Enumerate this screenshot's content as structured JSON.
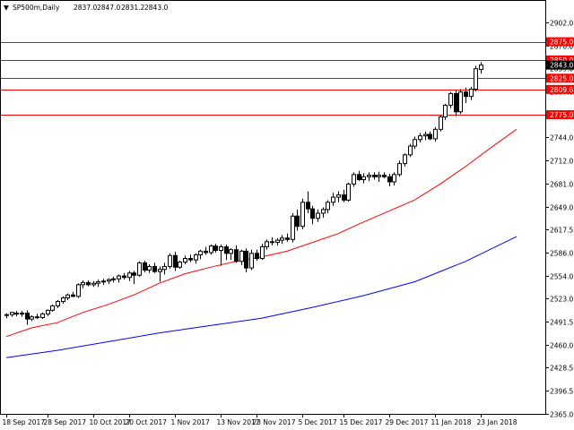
{
  "chart_data": {
    "type": "candlestick",
    "title": "SP500m,Daily",
    "last_bar": {
      "open": "2837.0",
      "high": "2847.0",
      "low": "2831.2",
      "close": "2843.0"
    },
    "current_price_label": "2843.0",
    "ylim": [
      2365,
      2915
    ],
    "y_ticks": [
      "2902.0",
      "2870.0",
      "2839.0",
      "2807.0",
      "2775.0",
      "2744.0",
      "2712.0",
      "2681.0",
      "2649.0",
      "2617.5",
      "2586.0",
      "2554.0",
      "2523.0",
      "2491.5",
      "2460.0",
      "2428.5",
      "2396.5",
      "2365.0"
    ],
    "x_ticks": [
      "18 Sep 2017",
      "28 Sep 2017",
      "10 Oct 2017",
      "20 Oct 2017",
      "1 Nov 2017",
      "13 Nov 2017",
      "23 Nov 2017",
      "5 Dec 2017",
      "15 Dec 2017",
      "29 Dec 2017",
      "11 Jan 2018",
      "23 Jan 2018"
    ],
    "levels": [
      {
        "value": 2875.0,
        "label": "2875.0"
      },
      {
        "value": 2850.0,
        "label": "2850.0"
      },
      {
        "value": 2825.0,
        "label": "2825.0"
      },
      {
        "value": 2809.6,
        "label": "2809.6"
      },
      {
        "value": 2775.0,
        "label": "2775.0"
      }
    ],
    "candles": [
      [
        2500,
        2503,
        2496,
        2501
      ],
      [
        2501,
        2505,
        2498,
        2504
      ],
      [
        2503,
        2506,
        2499,
        2502
      ],
      [
        2502,
        2506,
        2498,
        2503
      ],
      [
        2503,
        2507,
        2487,
        2495
      ],
      [
        2495,
        2500,
        2492,
        2498
      ],
      [
        2498,
        2502,
        2495,
        2497
      ],
      [
        2497,
        2504,
        2495,
        2502
      ],
      [
        2502,
        2508,
        2499,
        2507
      ],
      [
        2507,
        2515,
        2505,
        2513
      ],
      [
        2513,
        2521,
        2510,
        2519
      ],
      [
        2519,
        2526,
        2516,
        2524
      ],
      [
        2524,
        2530,
        2521,
        2528
      ],
      [
        2528,
        2532,
        2525,
        2526
      ],
      [
        2526,
        2544,
        2524,
        2542
      ],
      [
        2542,
        2548,
        2537,
        2545
      ],
      [
        2545,
        2548,
        2540,
        2542
      ],
      [
        2542,
        2547,
        2539,
        2544
      ],
      [
        2544,
        2549,
        2539,
        2546
      ],
      [
        2546,
        2550,
        2542,
        2547
      ],
      [
        2547,
        2551,
        2543,
        2549
      ],
      [
        2549,
        2553,
        2545,
        2550
      ],
      [
        2550,
        2556,
        2545,
        2554
      ],
      [
        2554,
        2558,
        2549,
        2552
      ],
      [
        2552,
        2561,
        2547,
        2558
      ],
      [
        2558,
        2561,
        2543,
        2555
      ],
      [
        2555,
        2574,
        2553,
        2572
      ],
      [
        2572,
        2575,
        2559,
        2562
      ],
      [
        2562,
        2570,
        2558,
        2567
      ],
      [
        2567,
        2572,
        2558,
        2560
      ],
      [
        2560,
        2567,
        2546,
        2563
      ],
      [
        2563,
        2572,
        2556,
        2567
      ],
      [
        2567,
        2585,
        2564,
        2582
      ],
      [
        2582,
        2587,
        2561,
        2566
      ],
      [
        2566,
        2575,
        2564,
        2573
      ],
      [
        2573,
        2582,
        2570,
        2578
      ],
      [
        2578,
        2583,
        2573,
        2576
      ],
      [
        2576,
        2585,
        2571,
        2583
      ],
      [
        2583,
        2590,
        2577,
        2588
      ],
      [
        2588,
        2594,
        2583,
        2586
      ],
      [
        2586,
        2597,
        2583,
        2595
      ],
      [
        2595,
        2598,
        2586,
        2589
      ],
      [
        2589,
        2597,
        2568,
        2594
      ],
      [
        2594,
        2597,
        2576,
        2585
      ],
      [
        2585,
        2592,
        2576,
        2590
      ],
      [
        2590,
        2596,
        2572,
        2574
      ],
      [
        2574,
        2590,
        2569,
        2588
      ],
      [
        2588,
        2592,
        2559,
        2565
      ],
      [
        2565,
        2590,
        2562,
        2585
      ],
      [
        2585,
        2590,
        2575,
        2578
      ],
      [
        2578,
        2598,
        2576,
        2594
      ],
      [
        2594,
        2604,
        2590,
        2601
      ],
      [
        2601,
        2607,
        2596,
        2600
      ],
      [
        2600,
        2606,
        2596,
        2603
      ],
      [
        2603,
        2610,
        2598,
        2606
      ],
      [
        2606,
        2612,
        2601,
        2604
      ],
      [
        2604,
        2640,
        2600,
        2636
      ],
      [
        2636,
        2645,
        2616,
        2622
      ],
      [
        2622,
        2660,
        2618,
        2655
      ],
      [
        2655,
        2670,
        2640,
        2646
      ],
      [
        2646,
        2650,
        2625,
        2633
      ],
      [
        2633,
        2645,
        2628,
        2640
      ],
      [
        2640,
        2648,
        2634,
        2645
      ],
      [
        2645,
        2658,
        2640,
        2655
      ],
      [
        2655,
        2668,
        2650,
        2662
      ],
      [
        2662,
        2670,
        2655,
        2665
      ],
      [
        2665,
        2672,
        2655,
        2658
      ],
      [
        2658,
        2682,
        2656,
        2680
      ],
      [
        2680,
        2696,
        2676,
        2693
      ],
      [
        2693,
        2698,
        2684,
        2686
      ],
      [
        2686,
        2695,
        2681,
        2690
      ],
      [
        2690,
        2696,
        2684,
        2692
      ],
      [
        2692,
        2696,
        2686,
        2690
      ],
      [
        2690,
        2697,
        2683,
        2692
      ],
      [
        2692,
        2696,
        2688,
        2690
      ],
      [
        2690,
        2694,
        2677,
        2683
      ],
      [
        2683,
        2696,
        2678,
        2693
      ],
      [
        2693,
        2712,
        2690,
        2708
      ],
      [
        2708,
        2722,
        2704,
        2720
      ],
      [
        2720,
        2735,
        2717,
        2732
      ],
      [
        2732,
        2745,
        2728,
        2741
      ],
      [
        2741,
        2750,
        2737,
        2746
      ],
      [
        2746,
        2752,
        2740,
        2748
      ],
      [
        2748,
        2752,
        2740,
        2742
      ],
      [
        2742,
        2758,
        2738,
        2755
      ],
      [
        2755,
        2775,
        2752,
        2772
      ],
      [
        2772,
        2790,
        2768,
        2788
      ],
      [
        2788,
        2806,
        2784,
        2804
      ],
      [
        2804,
        2809,
        2773,
        2779
      ],
      [
        2779,
        2810,
        2776,
        2806
      ],
      [
        2806,
        2812,
        2791,
        2800
      ],
      [
        2800,
        2813,
        2795,
        2810
      ],
      [
        2810,
        2842,
        2807,
        2838
      ],
      [
        2837,
        2847,
        2831.2,
        2843
      ]
    ],
    "ma_red": [
      [
        0,
        2471
      ],
      [
        5,
        2483
      ],
      [
        10,
        2490
      ],
      [
        15,
        2504
      ],
      [
        20,
        2515
      ],
      [
        25,
        2528
      ],
      [
        30,
        2544
      ],
      [
        35,
        2557
      ],
      [
        40,
        2566
      ],
      [
        45,
        2574
      ],
      [
        50,
        2580
      ],
      [
        55,
        2588
      ],
      [
        60,
        2600
      ],
      [
        65,
        2612
      ],
      [
        70,
        2628
      ],
      [
        75,
        2643
      ],
      [
        80,
        2658
      ],
      [
        85,
        2680
      ],
      [
        90,
        2704
      ],
      [
        95,
        2730
      ],
      [
        100,
        2755
      ]
    ],
    "ma_blue": [
      [
        0,
        2442
      ],
      [
        10,
        2452
      ],
      [
        20,
        2464
      ],
      [
        30,
        2476
      ],
      [
        40,
        2486
      ],
      [
        50,
        2496
      ],
      [
        60,
        2511
      ],
      [
        70,
        2527
      ],
      [
        80,
        2546
      ],
      [
        90,
        2574
      ],
      [
        100,
        2608
      ]
    ],
    "colors": {
      "ma_red": "#ff0000",
      "ma_blue": "#0000ff",
      "level_line": "#ff0000",
      "level_label_bg": "#ff0000",
      "current_label_bg": "#000000",
      "candle": "#000000",
      "bull_body": "#ffffff",
      "bear_body": "#000000"
    }
  }
}
